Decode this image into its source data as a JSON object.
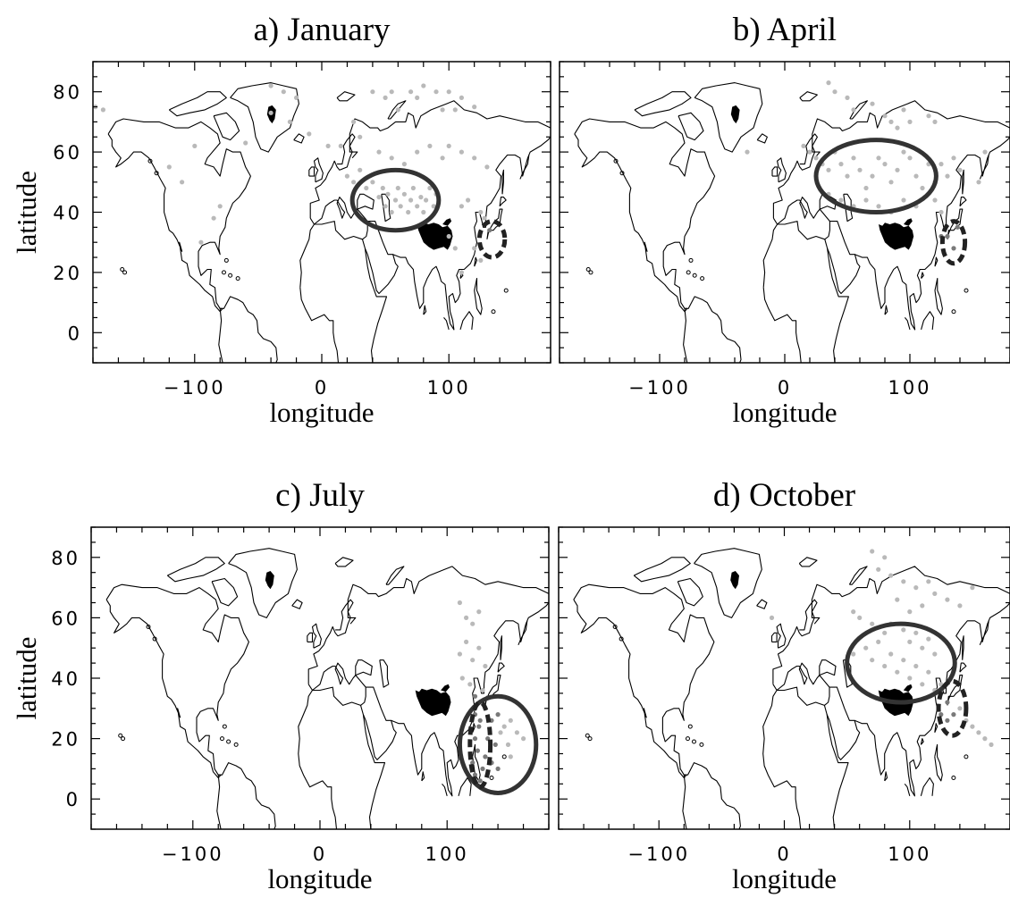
{
  "panels": [
    {
      "title": "a) January",
      "xlabel": "longitude",
      "ylabel": "latitude",
      "solid_ellipse": {
        "lon": 58,
        "lat": 44,
        "rlon": 34,
        "rlat": 10
      },
      "dashed_ellipse": {
        "lon": 134,
        "lat": 31,
        "rlon": 10,
        "rlat": 6
      },
      "points": [
        [
          -178,
          75
        ],
        [
          -172,
          74
        ],
        [
          -40,
          82
        ],
        [
          -30,
          80
        ],
        [
          -20,
          78
        ],
        [
          -25,
          70
        ],
        [
          -10,
          66
        ],
        [
          5,
          62
        ],
        [
          15,
          62
        ],
        [
          25,
          70
        ],
        [
          30,
          65
        ],
        [
          40,
          80
        ],
        [
          50,
          78
        ],
        [
          55,
          80
        ],
        [
          60,
          74
        ],
        [
          70,
          80
        ],
        [
          75,
          78
        ],
        [
          80,
          82
        ],
        [
          90,
          80
        ],
        [
          95,
          74
        ],
        [
          100,
          80
        ],
        [
          105,
          74
        ],
        [
          110,
          78
        ],
        [
          120,
          75
        ],
        [
          -40,
          73
        ],
        [
          -60,
          63
        ],
        [
          -100,
          62
        ],
        [
          -120,
          55
        ],
        [
          -110,
          50
        ],
        [
          20,
          52
        ],
        [
          25,
          50
        ],
        [
          30,
          54
        ],
        [
          35,
          48
        ],
        [
          40,
          50
        ],
        [
          45,
          45
        ],
        [
          48,
          48
        ],
        [
          50,
          42
        ],
        [
          52,
          46
        ],
        [
          55,
          40
        ],
        [
          58,
          44
        ],
        [
          60,
          48
        ],
        [
          62,
          42
        ],
        [
          65,
          46
        ],
        [
          68,
          40
        ],
        [
          70,
          44
        ],
        [
          72,
          48
        ],
        [
          75,
          42
        ],
        [
          78,
          45
        ],
        [
          80,
          40
        ],
        [
          82,
          44
        ],
        [
          85,
          48
        ],
        [
          88,
          42
        ],
        [
          90,
          46
        ],
        [
          45,
          60
        ],
        [
          55,
          58
        ],
        [
          65,
          56
        ],
        [
          75,
          60
        ],
        [
          85,
          62
        ],
        [
          95,
          58
        ],
        [
          100,
          62
        ],
        [
          110,
          60
        ],
        [
          120,
          58
        ],
        [
          130,
          55
        ],
        [
          110,
          42
        ],
        [
          115,
          44
        ],
        [
          125,
          40
        ],
        [
          132,
          34
        ],
        [
          128,
          38
        ],
        [
          100,
          32
        ],
        [
          105,
          28
        ],
        [
          120,
          28
        ],
        [
          125,
          24
        ],
        [
          110,
          20
        ],
        [
          -80,
          42
        ],
        [
          -85,
          38
        ],
        [
          -95,
          30
        ]
      ]
    },
    {
      "title": "b) April",
      "xlabel": "longitude",
      "ylabel": "",
      "solid_ellipse": {
        "lon": 73,
        "lat": 52,
        "rlon": 48,
        "rlat": 12
      },
      "dashed_ellipse": {
        "lon": 135,
        "lat": 30,
        "rlon": 9,
        "rlat": 7
      },
      "points": [
        [
          35,
          83
        ],
        [
          40,
          80
        ],
        [
          50,
          78
        ],
        [
          55,
          74
        ],
        [
          70,
          76
        ],
        [
          80,
          72
        ],
        [
          85,
          70
        ],
        [
          90,
          68
        ],
        [
          95,
          74
        ],
        [
          100,
          70
        ],
        [
          115,
          72
        ],
        [
          120,
          70
        ],
        [
          15,
          62
        ],
        [
          20,
          60
        ],
        [
          25,
          58
        ],
        [
          30,
          56
        ],
        [
          35,
          54
        ],
        [
          40,
          60
        ],
        [
          45,
          56
        ],
        [
          50,
          52
        ],
        [
          55,
          58
        ],
        [
          60,
          54
        ],
        [
          65,
          48
        ],
        [
          70,
          52
        ],
        [
          75,
          58
        ],
        [
          80,
          56
        ],
        [
          85,
          50
        ],
        [
          90,
          54
        ],
        [
          95,
          60
        ],
        [
          100,
          58
        ],
        [
          105,
          52
        ],
        [
          110,
          48
        ],
        [
          115,
          56
        ],
        [
          120,
          50
        ],
        [
          125,
          56
        ],
        [
          130,
          52
        ],
        [
          135,
          58
        ],
        [
          140,
          54
        ],
        [
          155,
          50
        ],
        [
          160,
          60
        ],
        [
          35,
          46
        ],
        [
          45,
          44
        ],
        [
          55,
          42
        ],
        [
          65,
          44
        ],
        [
          75,
          42
        ],
        [
          85,
          40
        ],
        [
          95,
          44
        ],
        [
          105,
          42
        ],
        [
          120,
          44
        ],
        [
          125,
          40
        ],
        [
          130,
          32
        ],
        [
          135,
          28
        ],
        [
          138,
          35
        ],
        [
          125,
          32
        ],
        [
          -30,
          60
        ]
      ]
    },
    {
      "title": "c) July",
      "xlabel": "longitude",
      "ylabel": "latitude",
      "solid_ellipse": {
        "lon": 140,
        "lat": 18,
        "rlon": 30,
        "rlat": 16
      },
      "dashed_ellipse": {
        "lon": 126,
        "lat": 18,
        "rlon": 8,
        "rlat": 14
      },
      "points": [
        [
          110,
          65
        ],
        [
          115,
          60
        ],
        [
          120,
          58
        ],
        [
          125,
          62
        ],
        [
          110,
          48
        ],
        [
          115,
          52
        ],
        [
          120,
          46
        ],
        [
          125,
          50
        ],
        [
          130,
          44
        ],
        [
          112,
          40
        ],
        [
          118,
          38
        ],
        [
          122,
          34
        ],
        [
          128,
          36
        ],
        [
          130,
          30
        ],
        [
          135,
          26
        ],
        [
          140,
          28
        ],
        [
          145,
          24
        ],
        [
          150,
          26
        ],
        [
          155,
          22
        ],
        [
          160,
          20
        ],
        [
          132,
          20
        ],
        [
          138,
          18
        ],
        [
          142,
          22
        ],
        [
          148,
          18
        ],
        [
          150,
          14
        ],
        [
          130,
          14
        ],
        [
          135,
          12
        ],
        [
          140,
          10
        ],
        [
          125,
          24
        ],
        [
          122,
          20
        ],
        [
          124,
          16
        ],
        [
          120,
          12
        ],
        [
          122,
          8
        ],
        [
          126,
          6
        ],
        [
          128,
          10
        ],
        [
          126,
          26
        ],
        [
          122,
          28
        ]
      ]
    },
    {
      "title": "d) October",
      "xlabel": "longitude",
      "ylabel": "",
      "solid_ellipse": {
        "lon": 93,
        "lat": 45,
        "rlon": 43,
        "rlat": 13
      },
      "dashed_ellipse": {
        "lon": 134,
        "lat": 30,
        "rlon": 11,
        "rlat": 9
      },
      "points": [
        [
          70,
          82
        ],
        [
          80,
          80
        ],
        [
          75,
          76
        ],
        [
          85,
          74
        ],
        [
          95,
          72
        ],
        [
          105,
          70
        ],
        [
          115,
          72
        ],
        [
          120,
          68
        ],
        [
          130,
          66
        ],
        [
          140,
          64
        ],
        [
          150,
          70
        ],
        [
          90,
          66
        ],
        [
          100,
          62
        ],
        [
          110,
          64
        ],
        [
          60,
          60
        ],
        [
          55,
          62
        ],
        [
          70,
          58
        ],
        [
          80,
          55
        ],
        [
          85,
          58
        ],
        [
          95,
          56
        ],
        [
          100,
          52
        ],
        [
          105,
          55
        ],
        [
          110,
          50
        ],
        [
          115,
          53
        ],
        [
          120,
          48
        ],
        [
          55,
          48
        ],
        [
          65,
          50
        ],
        [
          70,
          46
        ],
        [
          75,
          52
        ],
        [
          80,
          44
        ],
        [
          85,
          48
        ],
        [
          90,
          42
        ],
        [
          95,
          46
        ],
        [
          100,
          40
        ],
        [
          105,
          44
        ],
        [
          110,
          38
        ],
        [
          115,
          42
        ],
        [
          120,
          36
        ],
        [
          125,
          38
        ],
        [
          130,
          32
        ],
        [
          135,
          28
        ],
        [
          140,
          30
        ],
        [
          145,
          26
        ],
        [
          150,
          24
        ],
        [
          155,
          22
        ],
        [
          160,
          20
        ],
        [
          165,
          18
        ],
        [
          130,
          26
        ],
        [
          125,
          28
        ],
        [
          -10,
          60
        ]
      ]
    }
  ],
  "axes": {
    "xlim": [
      -180,
      180
    ],
    "ylim": [
      -10,
      90
    ],
    "xticks": [
      -100,
      0,
      100
    ],
    "xticklabels": [
      "−100",
      "0",
      "100"
    ],
    "yticks": [
      0,
      20,
      40,
      60,
      80
    ],
    "yticklabels": [
      "0",
      "20",
      "40",
      "60",
      "80"
    ]
  },
  "colors": {
    "points": "#b9b9b9",
    "dark_points": "#7a7a7a",
    "tibet_mask": "#000000",
    "ellipse": "#333333"
  }
}
